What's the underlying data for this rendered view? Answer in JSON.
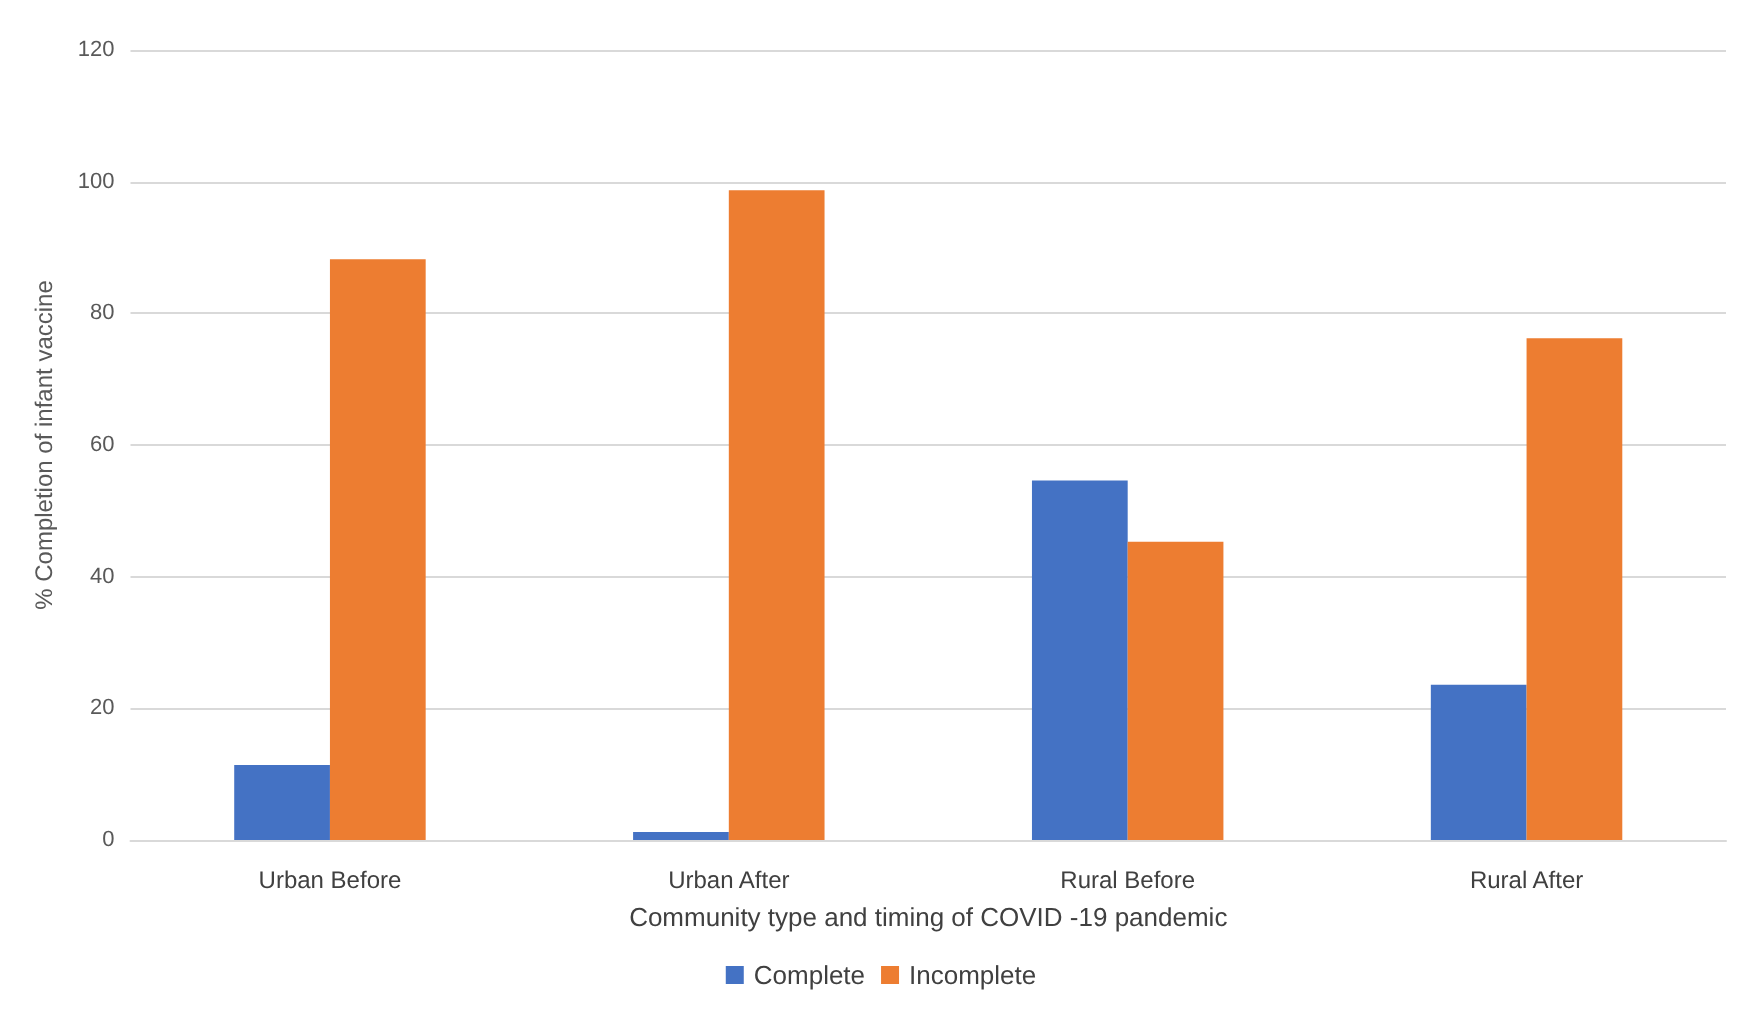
{
  "chart_data": {
    "type": "bar",
    "xlabel": "Community type and timing of COVID -19 pandemic",
    "ylabel": "% Completion of infant vaccine",
    "categories": [
      "Urban Before",
      "Urban After",
      "Rural Before",
      "Rural After"
    ],
    "series": [
      {
        "name": "Complete",
        "color": "#4472c4",
        "values": [
          11.4,
          1.2,
          54.6,
          23.6
        ]
      },
      {
        "name": "Incomplete",
        "color": "#ed7d31",
        "values": [
          88.2,
          98.7,
          45.3,
          76.2
        ]
      }
    ],
    "ylim": [
      0,
      120
    ],
    "yticks": [
      0,
      20,
      40,
      60,
      80,
      100,
      120
    ],
    "grid": "y",
    "legend": "bottom"
  }
}
